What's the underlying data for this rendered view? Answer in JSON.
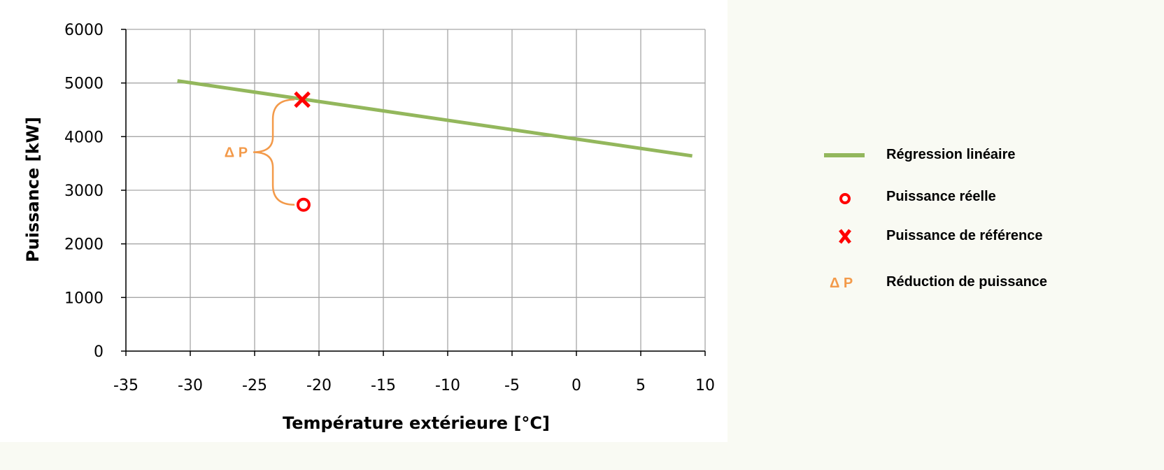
{
  "chart_data": {
    "type": "line",
    "title": "",
    "xlabel": "Température extérieure [°C]",
    "ylabel": "Puissance [kW]",
    "xlim": [
      -35,
      10
    ],
    "ylim": [
      0,
      6000
    ],
    "x_ticks": [
      -35,
      -30,
      -25,
      -20,
      -15,
      -10,
      -5,
      0,
      5,
      10
    ],
    "y_ticks": [
      0,
      1000,
      2000,
      3000,
      4000,
      5000,
      6000
    ],
    "x_tick_labels": [
      "-35",
      "-30",
      "-25",
      "-20",
      "-15",
      "-10",
      "-5",
      "0",
      "5",
      "10"
    ],
    "y_tick_labels": [
      "0",
      "1000",
      "2000",
      "3000",
      "4000",
      "5000",
      "6000"
    ],
    "grid": true,
    "legend_position": "right",
    "series": [
      {
        "name": "Régression linéaire",
        "kind": "line",
        "color": "#93b75c",
        "x": [
          -31,
          9
        ],
        "y": [
          5040,
          3640
        ]
      },
      {
        "name": "Puissance réelle",
        "kind": "scatter",
        "marker": "circle",
        "color": "#ff0000",
        "x": [
          -21.2
        ],
        "y": [
          2730
        ]
      },
      {
        "name": "Puissance de référence",
        "kind": "scatter",
        "marker": "x",
        "color": "#ff0000",
        "x": [
          -21.3
        ],
        "y": [
          4690
        ]
      }
    ],
    "annotations": [
      {
        "type": "brace",
        "label": "Δ P",
        "x": -21.3,
        "y_from": 2730,
        "y_to": 4690,
        "color": "#f39a4a"
      }
    ]
  },
  "legend": {
    "items": [
      {
        "symbol": "line",
        "label": "Régression linéaire",
        "color": "#93b75c"
      },
      {
        "symbol": "circle",
        "label": "Puissance réelle",
        "color": "#ff0000"
      },
      {
        "symbol": "x",
        "label": "Puissance de référence",
        "color": "#ff0000"
      },
      {
        "symbol": "text",
        "symbol_text": "Δ P",
        "label": "Réduction de puissance",
        "color": "#f39a4a"
      }
    ]
  },
  "colors": {
    "background": "#f9faf3",
    "plot_background": "#ffffff",
    "grid": "#a6a6a6",
    "axis": "#000000"
  }
}
